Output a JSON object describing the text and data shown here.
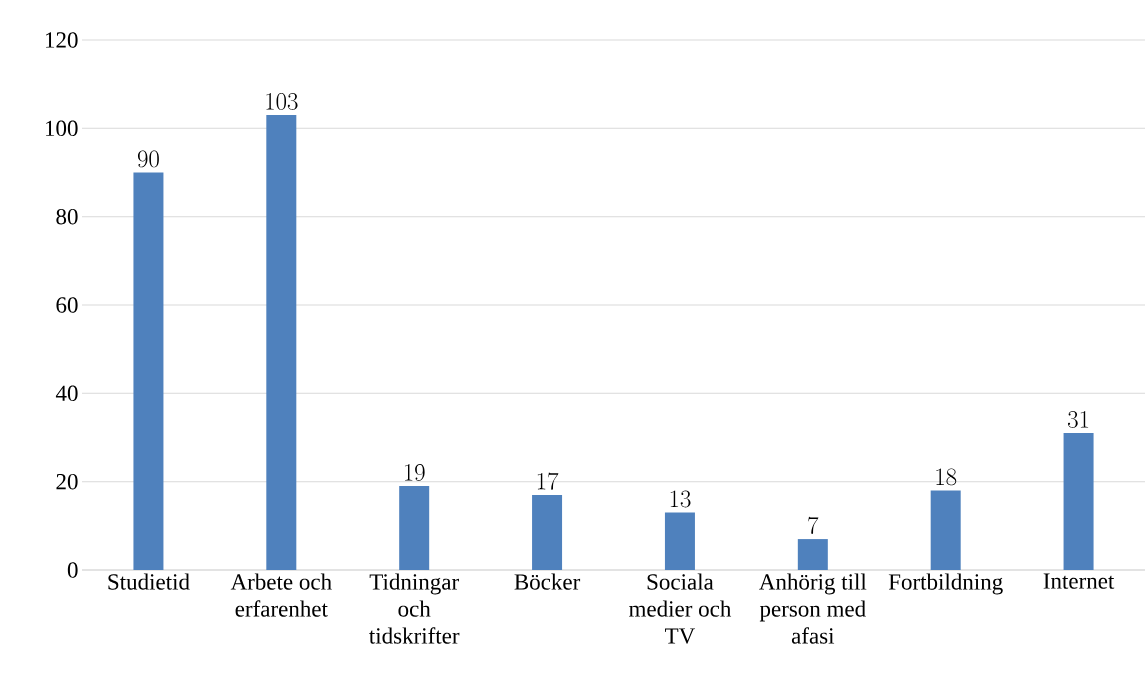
{
  "chart_data": {
    "type": "bar",
    "categories": [
      "Studietid",
      "Arbete och erfarenhet",
      "Tidningar och tidskrifter",
      "Böcker",
      "Sociala medier och TV",
      "Anhörig till person med afasi",
      "Fortbildning",
      "Internet"
    ],
    "values": [
      90,
      103,
      19,
      17,
      13,
      7,
      18,
      31
    ],
    "color": "#4f81bd",
    "ylim": [
      0,
      120
    ],
    "yticks": [
      0,
      20,
      40,
      60,
      80,
      100,
      120
    ],
    "grid": "y",
    "data_labels": true
  }
}
